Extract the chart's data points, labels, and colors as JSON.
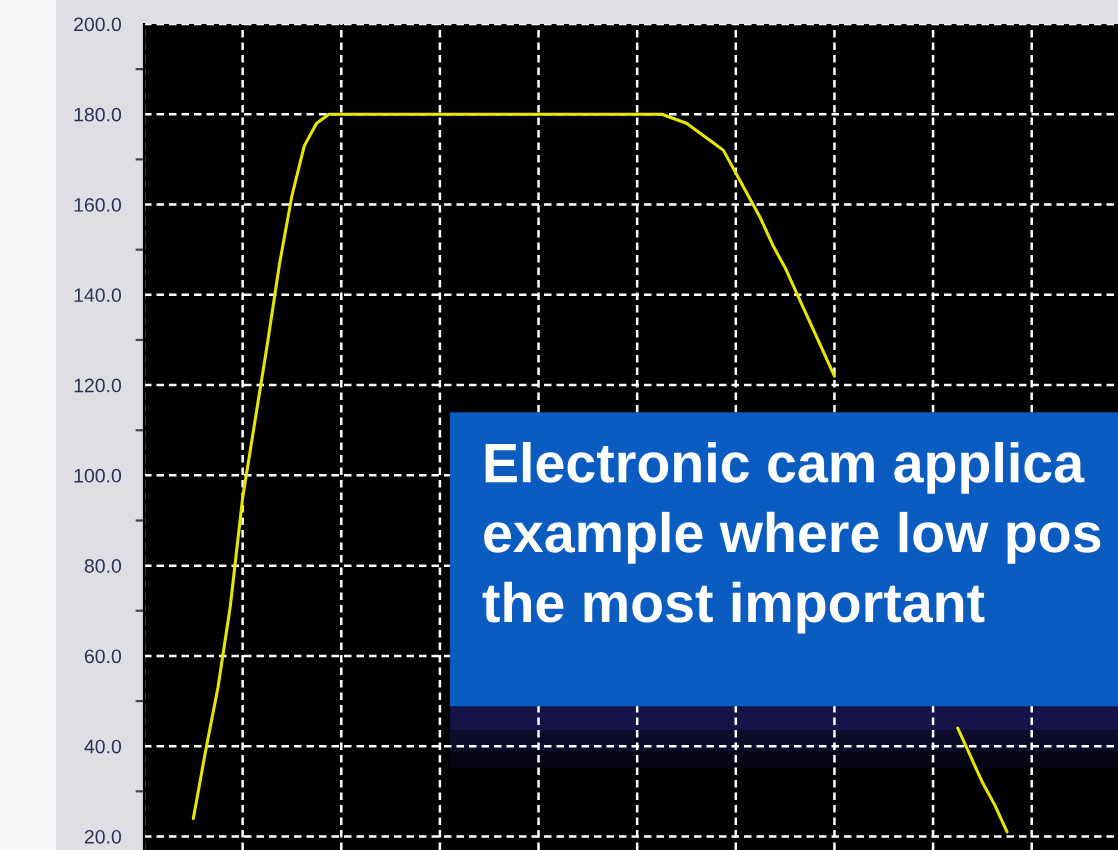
{
  "chart_data": {
    "type": "line",
    "categories": [
      null,
      null,
      null,
      null,
      null,
      null,
      null,
      null,
      null,
      null,
      null,
      null,
      null,
      null,
      null,
      null,
      null,
      null,
      null,
      null,
      null,
      null,
      null,
      null,
      null,
      null,
      null,
      null,
      null,
      null,
      null,
      null,
      null,
      null,
      null,
      null,
      null,
      null,
      null,
      null,
      null,
      null,
      null,
      null,
      null,
      null,
      null,
      null,
      null,
      null,
      null,
      null,
      null,
      null,
      null,
      null,
      null,
      null,
      null,
      null,
      null,
      null,
      null,
      null,
      null,
      null,
      null,
      null,
      null,
      null,
      null,
      null,
      null,
      null,
      null,
      null,
      null,
      null,
      null,
      null
    ],
    "series": [
      {
        "color": "#e6e600",
        "values": [
          null,
          null,
          null,
          null,
          24,
          39,
          53,
          71,
          95,
          112,
          129,
          147,
          162,
          173,
          178,
          180,
          180,
          180,
          180,
          180,
          180,
          180,
          180,
          180,
          180,
          180,
          180,
          180,
          180,
          180,
          180,
          180,
          180,
          180,
          180,
          180,
          180,
          180,
          180,
          180,
          180,
          180,
          180,
          179,
          178,
          176,
          174,
          172,
          167,
          162,
          157,
          151,
          146,
          140,
          134,
          128,
          122,
          null,
          null,
          null,
          null,
          null,
          null,
          null,
          null,
          null,
          null,
          null,
          null,
          null,
          null,
          null,
          null,
          null,
          null,
          null,
          null,
          null,
          null,
          null
        ]
      },
      {
        "color": "#e6e600",
        "values": [
          null,
          null,
          null,
          null,
          null,
          null,
          null,
          null,
          null,
          null,
          null,
          null,
          null,
          null,
          null,
          null,
          null,
          null,
          null,
          null,
          null,
          null,
          null,
          null,
          null,
          null,
          null,
          null,
          null,
          null,
          null,
          null,
          null,
          null,
          null,
          null,
          null,
          null,
          null,
          null,
          null,
          null,
          null,
          null,
          null,
          null,
          null,
          null,
          null,
          null,
          null,
          null,
          null,
          null,
          null,
          null,
          null,
          null,
          null,
          null,
          null,
          null,
          null,
          null,
          null,
          null,
          44,
          38,
          32,
          27,
          21,
          null,
          null,
          null,
          null,
          null,
          null,
          null,
          null,
          null
        ]
      }
    ],
    "ylim": [
      17,
      200
    ],
    "yticks": [
      {
        "value": 20,
        "label": "20.0"
      },
      {
        "value": 30,
        "label": null
      },
      {
        "value": 40,
        "label": "40.0"
      },
      {
        "value": 50,
        "label": null
      },
      {
        "value": 60,
        "label": "60.0"
      },
      {
        "value": 70,
        "label": null
      },
      {
        "value": 80,
        "label": "80.0"
      },
      {
        "value": 90,
        "label": null
      },
      {
        "value": 100,
        "label": "100.0"
      },
      {
        "value": 110,
        "label": null
      },
      {
        "value": 120,
        "label": "120.0"
      },
      {
        "value": 130,
        "label": null
      },
      {
        "value": 140,
        "label": "140.0"
      },
      {
        "value": 150,
        "label": null
      },
      {
        "value": 160,
        "label": "160.0"
      },
      {
        "value": 170,
        "label": null
      },
      {
        "value": 180,
        "label": "180.0"
      },
      {
        "value": 190,
        "label": null
      },
      {
        "value": 200,
        "label": "200.0"
      }
    ],
    "grid": true,
    "tick_labels": "y",
    "annotations": [
      "Electronic cam applica\nexample where low pos\nthe most important"
    ]
  }
}
